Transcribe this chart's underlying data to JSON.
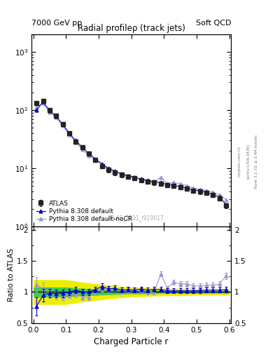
{
  "title_left": "7000 GeV pp",
  "title_right": "Soft QCD",
  "main_title": "Radial profileρ (track jets)",
  "right_label": "Rivet 3.1.10; ≥ 3.4M events",
  "arxiv_label": "[arXiv:1306.3436]",
  "mcplots_label": "mcplots.cern.ch",
  "watermark": "ATLAS_2011_I919017",
  "xlabel": "Charged Particle r",
  "ylabel_ratio": "Ratio to ATLAS",
  "ylim_main": [
    1.0,
    2000.0
  ],
  "ylim_ratio": [
    0.5,
    2.05
  ],
  "xlim": [
    -0.005,
    0.605
  ],
  "atlas_x": [
    0.01,
    0.03,
    0.05,
    0.07,
    0.09,
    0.11,
    0.13,
    0.15,
    0.17,
    0.19,
    0.21,
    0.23,
    0.25,
    0.27,
    0.29,
    0.31,
    0.33,
    0.35,
    0.37,
    0.39,
    0.41,
    0.43,
    0.45,
    0.47,
    0.49,
    0.51,
    0.53,
    0.55,
    0.57,
    0.59
  ],
  "atlas_y": [
    130,
    145,
    100,
    80,
    58,
    40,
    29,
    23,
    18,
    14,
    11,
    9.5,
    8.5,
    7.8,
    7.2,
    6.8,
    6.3,
    6.0,
    5.7,
    5.5,
    5.2,
    5.0,
    4.8,
    4.5,
    4.2,
    4.0,
    3.8,
    3.5,
    3.1,
    2.3
  ],
  "atlas_yerr": [
    10,
    12,
    8,
    6,
    5,
    3,
    2.5,
    2,
    1.5,
    1.2,
    1.0,
    0.9,
    0.8,
    0.7,
    0.65,
    0.6,
    0.55,
    0.5,
    0.5,
    0.45,
    0.45,
    0.4,
    0.4,
    0.35,
    0.35,
    0.35,
    0.3,
    0.3,
    0.28,
    0.2
  ],
  "py_default_x": [
    0.01,
    0.03,
    0.05,
    0.07,
    0.09,
    0.11,
    0.13,
    0.15,
    0.17,
    0.19,
    0.21,
    0.23,
    0.25,
    0.27,
    0.29,
    0.31,
    0.33,
    0.35,
    0.37,
    0.39,
    0.41,
    0.43,
    0.45,
    0.47,
    0.49,
    0.51,
    0.53,
    0.55,
    0.57,
    0.59
  ],
  "py_default_y": [
    100,
    138,
    98,
    78,
    57,
    40,
    30,
    23,
    18,
    14.5,
    12,
    10.0,
    9.0,
    8.0,
    7.5,
    7.0,
    6.6,
    6.2,
    5.9,
    5.7,
    5.3,
    5.1,
    4.9,
    4.6,
    4.3,
    4.1,
    3.9,
    3.6,
    3.2,
    2.4
  ],
  "py_nocr_x": [
    0.01,
    0.03,
    0.05,
    0.07,
    0.09,
    0.11,
    0.13,
    0.15,
    0.17,
    0.19,
    0.21,
    0.23,
    0.25,
    0.27,
    0.29,
    0.31,
    0.33,
    0.35,
    0.37,
    0.39,
    0.41,
    0.43,
    0.45,
    0.47,
    0.49,
    0.51,
    0.53,
    0.55,
    0.57,
    0.59
  ],
  "py_nocr_y": [
    112,
    130,
    93,
    75,
    54,
    38,
    28,
    21,
    16.5,
    14,
    11.5,
    9.8,
    9.0,
    7.9,
    7.4,
    6.9,
    6.5,
    6.0,
    5.7,
    7.1,
    5.5,
    5.8,
    5.4,
    5.1,
    4.6,
    4.4,
    4.2,
    3.9,
    3.5,
    2.9
  ],
  "ratio_py_default_x": [
    0.01,
    0.03,
    0.05,
    0.07,
    0.09,
    0.11,
    0.13,
    0.15,
    0.17,
    0.19,
    0.21,
    0.23,
    0.25,
    0.27,
    0.29,
    0.31,
    0.33,
    0.35,
    0.37,
    0.39,
    0.41,
    0.43,
    0.45,
    0.47,
    0.49,
    0.51,
    0.53,
    0.55,
    0.57,
    0.59
  ],
  "ratio_py_default": [
    0.77,
    0.95,
    0.98,
    0.975,
    0.98,
    1.0,
    1.03,
    1.0,
    1.0,
    1.04,
    1.09,
    1.05,
    1.06,
    1.03,
    1.04,
    1.03,
    1.05,
    1.03,
    1.04,
    1.04,
    1.02,
    1.02,
    1.02,
    1.02,
    1.02,
    1.025,
    1.03,
    1.03,
    1.03,
    1.04
  ],
  "ratio_py_default_err": [
    0.15,
    0.1,
    0.07,
    0.06,
    0.06,
    0.05,
    0.05,
    0.05,
    0.05,
    0.05,
    0.05,
    0.05,
    0.05,
    0.04,
    0.04,
    0.04,
    0.04,
    0.04,
    0.04,
    0.04,
    0.04,
    0.04,
    0.04,
    0.04,
    0.04,
    0.04,
    0.04,
    0.04,
    0.04,
    0.05
  ],
  "ratio_py_nocr_x": [
    0.01,
    0.03,
    0.05,
    0.07,
    0.09,
    0.11,
    0.13,
    0.15,
    0.17,
    0.19,
    0.21,
    0.23,
    0.25,
    0.27,
    0.29,
    0.31,
    0.33,
    0.35,
    0.37,
    0.39,
    0.41,
    0.43,
    0.45,
    0.47,
    0.49,
    0.51,
    0.53,
    0.55,
    0.57,
    0.59
  ],
  "ratio_py_nocr": [
    1.12,
    1.05,
    0.98,
    0.95,
    0.93,
    0.95,
    0.97,
    0.92,
    0.92,
    1.0,
    1.05,
    1.03,
    1.06,
    1.01,
    1.03,
    1.02,
    1.03,
    1.0,
    1.0,
    1.29,
    1.06,
    1.16,
    1.13,
    1.13,
    1.1,
    1.1,
    1.11,
    1.11,
    1.13,
    1.26
  ],
  "ratio_py_nocr_err": [
    0.12,
    0.1,
    0.08,
    0.07,
    0.06,
    0.05,
    0.05,
    0.05,
    0.05,
    0.05,
    0.05,
    0.05,
    0.05,
    0.04,
    0.04,
    0.04,
    0.04,
    0.04,
    0.04,
    0.04,
    0.04,
    0.04,
    0.04,
    0.04,
    0.04,
    0.04,
    0.04,
    0.04,
    0.04,
    0.05
  ],
  "green_band_x": [
    0.0,
    0.01,
    0.05,
    0.1,
    0.15,
    0.2,
    0.25,
    0.3,
    0.35,
    0.4,
    0.45,
    0.5,
    0.55,
    0.6
  ],
  "green_band_hi": [
    1.08,
    1.08,
    1.08,
    1.08,
    1.06,
    1.05,
    1.04,
    1.03,
    1.03,
    1.02,
    1.02,
    1.02,
    1.02,
    1.02
  ],
  "green_band_lo": [
    0.92,
    0.92,
    0.92,
    0.92,
    0.94,
    0.95,
    0.96,
    0.97,
    0.97,
    0.98,
    0.98,
    0.98,
    0.98,
    0.98
  ],
  "yellow_band_x": [
    0.0,
    0.01,
    0.05,
    0.1,
    0.15,
    0.2,
    0.25,
    0.3,
    0.35,
    0.4,
    0.45,
    0.5,
    0.55,
    0.6
  ],
  "yellow_band_hi": [
    1.2,
    1.2,
    1.2,
    1.2,
    1.16,
    1.13,
    1.1,
    1.08,
    1.07,
    1.06,
    1.06,
    1.05,
    1.05,
    1.05
  ],
  "yellow_band_lo": [
    0.8,
    0.8,
    0.8,
    0.8,
    0.84,
    0.87,
    0.9,
    0.92,
    0.93,
    0.94,
    0.94,
    0.95,
    0.95,
    0.95
  ],
  "color_atlas": "#222222",
  "color_py_default": "#0000dd",
  "color_py_nocr": "#9999cc",
  "color_green": "#44cc44",
  "color_yellow": "#eeee00",
  "background_color": "#ffffff"
}
